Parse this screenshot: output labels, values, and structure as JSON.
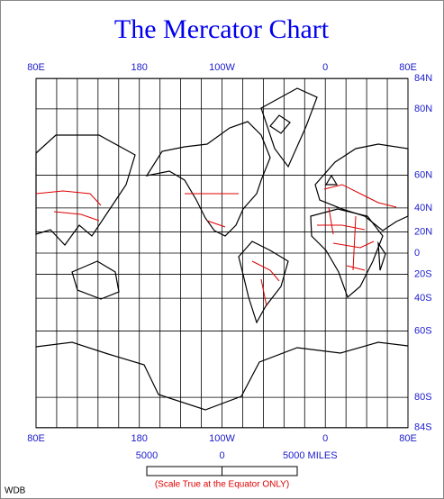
{
  "title": "The Mercator Chart",
  "longitudes": [
    {
      "value": 80,
      "label": "80E"
    },
    {
      "value": 180,
      "label": "180"
    },
    {
      "value": 260,
      "label": "100W"
    },
    {
      "value": 360,
      "label": "0"
    },
    {
      "value": 440,
      "label": "80E"
    }
  ],
  "latitudes": [
    {
      "value": 84,
      "label": "84N"
    },
    {
      "value": 80,
      "label": "80N"
    },
    {
      "value": 60,
      "label": "60N"
    },
    {
      "value": 40,
      "label": "40N"
    },
    {
      "value": 20,
      "label": "20N"
    },
    {
      "value": 0,
      "label": "0"
    },
    {
      "value": -20,
      "label": "20S"
    },
    {
      "value": -40,
      "label": "40S"
    },
    {
      "value": -60,
      "label": "60S"
    },
    {
      "value": -80,
      "label": "80S"
    },
    {
      "value": -84,
      "label": "84S"
    }
  ],
  "scale": {
    "labels": [
      "5000",
      "0",
      "5000 MILES"
    ],
    "note": "(Scale True at the Equator ONLY)"
  },
  "credit": "WDB"
}
